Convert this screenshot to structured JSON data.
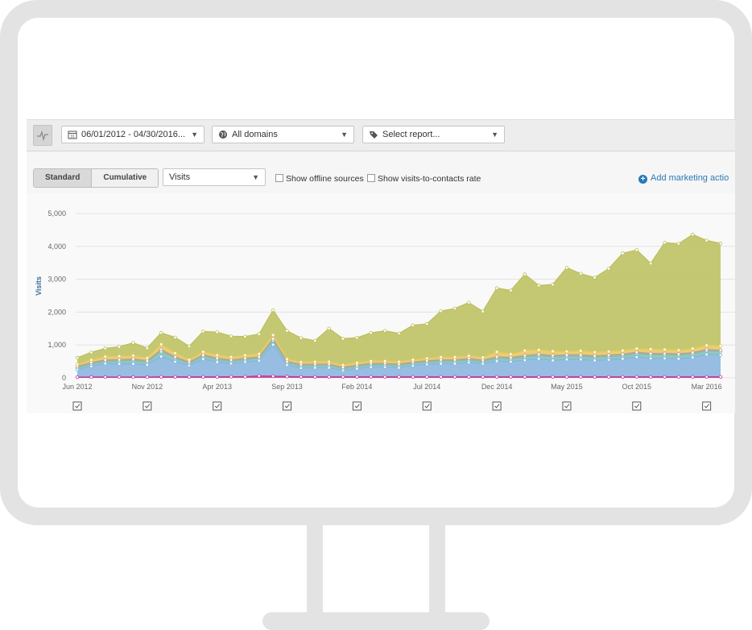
{
  "toolbar": {
    "date_range": "06/01/2012 - 04/30/2016...",
    "domains": "All domains",
    "report": "Select report..."
  },
  "controls": {
    "standard": "Standard",
    "cumulative": "Cumulative",
    "metric": "Visits",
    "offline": "Show offline sources",
    "rate": "Show visits-to-contacts rate",
    "add_action": "Add marketing actio"
  },
  "chart_data": {
    "type": "area",
    "stacked": true,
    "ylabel": "Visits",
    "ylim": [
      0,
      5000
    ],
    "yticks": [
      0,
      1000,
      2000,
      3000,
      4000,
      5000
    ],
    "ytick_labels": [
      "0",
      "1,000",
      "2,000",
      "3,000",
      "4,000",
      "5,000"
    ],
    "xtick_labels": [
      "Jun 2012",
      "Nov 2012",
      "Apr 2013",
      "Sep 2013",
      "Feb 2014",
      "Jul 2014",
      "Dec 2014",
      "May 2015",
      "Oct 2015",
      "Mar 2016"
    ],
    "xtick_index": [
      0,
      5,
      10,
      15,
      20,
      25,
      30,
      35,
      40,
      45
    ],
    "grid": true,
    "n_points": 47,
    "series": [
      {
        "color": "#c2359b",
        "values": [
          20,
          25,
          25,
          25,
          25,
          25,
          30,
          30,
          30,
          30,
          30,
          35,
          35,
          60,
          50,
          40,
          30,
          30,
          30,
          30,
          30,
          30,
          30,
          30,
          30,
          30,
          30,
          30,
          30,
          30,
          30,
          30,
          30,
          30,
          30,
          30,
          30,
          30,
          30,
          30,
          30,
          30,
          30,
          30,
          30,
          30,
          30
        ]
      },
      {
        "color": "#86b4de",
        "values": [
          230,
          330,
          410,
          400,
          400,
          370,
          620,
          460,
          350,
          540,
          450,
          400,
          450,
          460,
          960,
          350,
          270,
          280,
          280,
          190,
          250,
          300,
          300,
          280,
          340,
          380,
          400,
          400,
          440,
          400,
          480,
          460,
          510,
          550,
          500,
          530,
          530,
          500,
          520,
          550,
          600,
          560,
          560,
          550,
          590,
          680,
          660
        ]
      },
      {
        "color": "#7fbfb5",
        "values": [
          60,
          70,
          70,
          90,
          110,
          90,
          150,
          110,
          60,
          90,
          80,
          70,
          70,
          80,
          130,
          70,
          70,
          70,
          70,
          60,
          70,
          70,
          70,
          70,
          70,
          70,
          80,
          80,
          80,
          70,
          90,
          90,
          100,
          100,
          110,
          100,
          100,
          100,
          100,
          100,
          110,
          110,
          110,
          110,
          110,
          110,
          110
        ]
      },
      {
        "color": "#b99f96",
        "values": [
          40,
          40,
          40,
          40,
          40,
          40,
          60,
          40,
          40,
          40,
          40,
          40,
          40,
          40,
          50,
          40,
          40,
          40,
          40,
          40,
          40,
          40,
          40,
          40,
          40,
          40,
          40,
          40,
          40,
          40,
          40,
          40,
          40,
          40,
          40,
          40,
          40,
          40,
          40,
          40,
          40,
          40,
          40,
          40,
          40,
          40,
          40
        ]
      },
      {
        "color": "#e7c85a",
        "values": [
          60,
          80,
          100,
          100,
          100,
          80,
          160,
          110,
          70,
          90,
          90,
          90,
          90,
          90,
          110,
          70,
          70,
          70,
          70,
          70,
          70,
          70,
          70,
          70,
          70,
          70,
          80,
          80,
          80,
          80,
          150,
          100,
          150,
          130,
          130,
          100,
          120,
          110,
          110,
          110,
          110,
          130,
          120,
          110,
          120,
          130,
          130
        ]
      },
      {
        "color": "#bcc05c",
        "values": [
          200,
          230,
          250,
          290,
          390,
          300,
          350,
          480,
          410,
          620,
          700,
          630,
          570,
          600,
          760,
          860,
          730,
          640,
          1010,
          800,
          760,
          860,
          920,
          860,
          1050,
          1050,
          1400,
          1480,
          1620,
          1400,
          1940,
          1940,
          2320,
          1960,
          2030,
          2550,
          2350,
          2270,
          2520,
          2960,
          3000,
          2610,
          3250,
          3240,
          3470,
          3190,
          3120
        ]
      }
    ]
  }
}
